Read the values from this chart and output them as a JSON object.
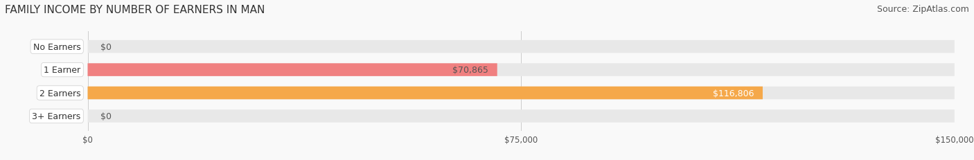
{
  "title": "FAMILY INCOME BY NUMBER OF EARNERS IN MAN",
  "source": "Source: ZipAtlas.com",
  "categories": [
    "No Earners",
    "1 Earner",
    "2 Earners",
    "3+ Earners"
  ],
  "values": [
    0,
    70865,
    116806,
    0
  ],
  "bar_colors": [
    "#aaaadd",
    "#f08080",
    "#f5a84a",
    "#f5a0a0"
  ],
  "label_colors": [
    "#555555",
    "#555555",
    "#ffffff",
    "#555555"
  ],
  "bar_bg_color": "#e8e8e8",
  "xlim": [
    0,
    150000
  ],
  "xticks": [
    0,
    75000,
    150000
  ],
  "xtick_labels": [
    "$0",
    "$75,000",
    "$150,000"
  ],
  "title_fontsize": 11,
  "source_fontsize": 9,
  "label_fontsize": 9,
  "bar_height": 0.55,
  "figsize": [
    14.06,
    2.32
  ],
  "dpi": 100
}
